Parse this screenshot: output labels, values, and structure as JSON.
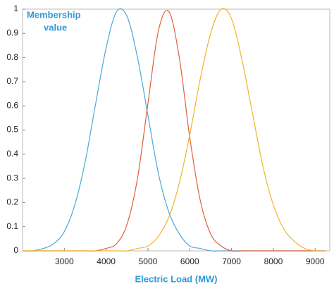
{
  "chart_data": {
    "type": "line",
    "ylabel": [
      "Membership",
      "value"
    ],
    "xlabel": "Electric Load (MW)",
    "x": [
      2000,
      2250,
      2500,
      2750,
      3000,
      3250,
      3500,
      3750,
      4000,
      4250,
      4500,
      4750,
      5000,
      5250,
      5500,
      5750,
      6000,
      6250,
      6500,
      6750,
      7000,
      7250,
      7500,
      7750,
      8000,
      8250,
      8500,
      8750,
      9000,
      9250
    ],
    "series": [
      {
        "color": "#4aa8d8",
        "values": [
          0,
          0,
          0.01,
          0.03,
          0.08,
          0.19,
          0.37,
          0.61,
          0.84,
          0.99,
          0.97,
          0.8,
          0.56,
          0.32,
          0.16,
          0.07,
          0.02,
          0.01,
          0,
          0,
          0,
          0,
          0,
          0,
          0,
          0,
          0,
          0,
          0,
          0
        ]
      },
      {
        "color": "#e0603a",
        "values": [
          0,
          0,
          0,
          0,
          0,
          0,
          0,
          0,
          0.01,
          0.03,
          0.11,
          0.3,
          0.61,
          0.91,
          0.99,
          0.8,
          0.47,
          0.21,
          0.07,
          0.02,
          0,
          0,
          0,
          0,
          0,
          0,
          0,
          0,
          0,
          0
        ]
      },
      {
        "color": "#f0b429",
        "values": [
          0,
          0,
          0,
          0,
          0,
          0,
          0,
          0,
          0,
          0,
          0,
          0.01,
          0.02,
          0.06,
          0.14,
          0.28,
          0.48,
          0.71,
          0.9,
          1.0,
          0.96,
          0.79,
          0.57,
          0.35,
          0.19,
          0.09,
          0.04,
          0.01,
          0,
          0
        ]
      }
    ],
    "xlim": [
      2000,
      9350
    ],
    "xticks": [
      3000,
      4000,
      5000,
      6000,
      7000,
      8000,
      9000
    ],
    "ylim": [
      0,
      1
    ],
    "yticks": [
      0,
      0.1,
      0.2,
      0.3,
      0.4,
      0.5,
      0.6,
      0.7,
      0.8,
      0.9,
      1
    ],
    "label_color": "#2e9bd6"
  }
}
